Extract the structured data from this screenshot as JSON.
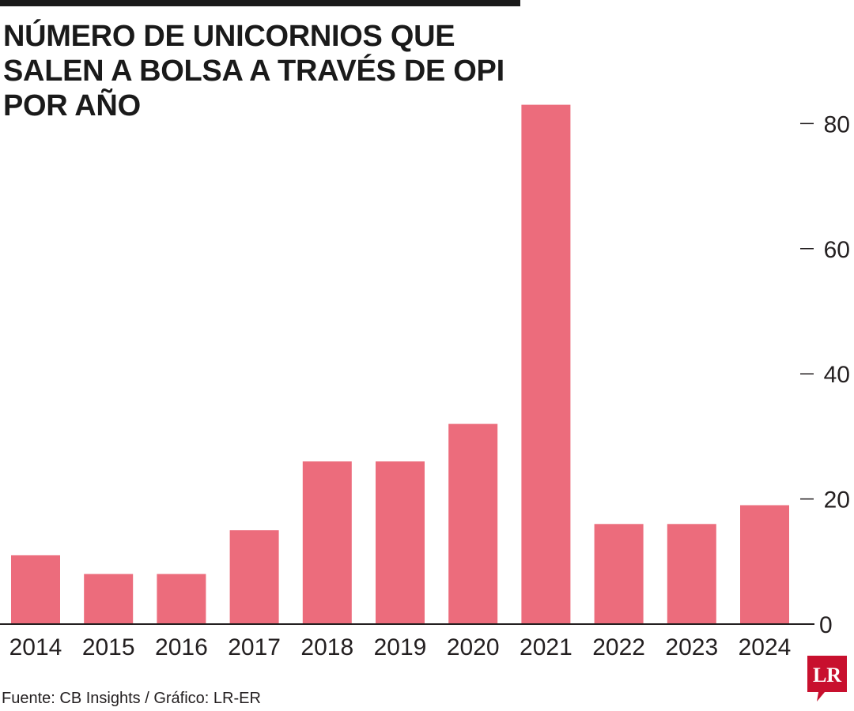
{
  "header": {
    "title": "NÚMERO DE UNICORNIOS QUE SALEN A BOLSA A TRAVÉS DE OPI POR AÑO"
  },
  "footer": {
    "source": "Fuente: CB Insights / Gráfico: LR-ER"
  },
  "logo": {
    "text": "LR",
    "color": "#c8102e"
  },
  "colors": {
    "bar": "#ec6c7c",
    "axis": "#231f20",
    "text": "#231f20"
  },
  "chart_data": {
    "type": "bar",
    "title": "NÚMERO DE UNICORNIOS QUE SALEN A BOLSA A TRAVÉS DE OPI POR AÑO",
    "categories": [
      "2014",
      "2015",
      "2016",
      "2017",
      "2018",
      "2019",
      "2020",
      "2021",
      "2022",
      "2023",
      "2024"
    ],
    "values": [
      11,
      8,
      8,
      15,
      26,
      26,
      32,
      83,
      16,
      16,
      19
    ],
    "ylim": [
      0,
      80
    ],
    "yticks": [
      "0",
      "20",
      "40",
      "60",
      "80"
    ],
    "y_axis_position": "right",
    "grid": false,
    "legend": false
  }
}
